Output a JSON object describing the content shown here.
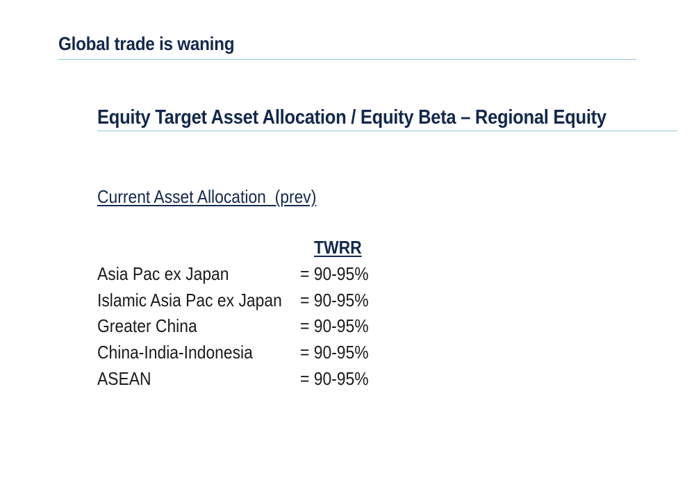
{
  "slide": {
    "title": "Global trade is waning"
  },
  "section": {
    "heading": "Equity Target Asset Allocation / Equity Beta – Regional Equity",
    "subheading": "Current Asset Allocation  (prev)"
  },
  "allocation": {
    "column_header": "TWRR",
    "rows": [
      {
        "label": "Asia Pac ex Japan",
        "value": "= 90-95%"
      },
      {
        "label": "Islamic Asia Pac ex Japan",
        "value": "= 90-95%"
      },
      {
        "label": "Greater China",
        "value": "= 90-95%"
      },
      {
        "label": "China-India-Indonesia",
        "value": "= 90-95%"
      },
      {
        "label": "ASEAN",
        "value": "= 90-95%"
      }
    ]
  },
  "colors": {
    "heading": "#13284b",
    "rule": "#8fc4d2",
    "body_text": "#1a1a1a"
  }
}
